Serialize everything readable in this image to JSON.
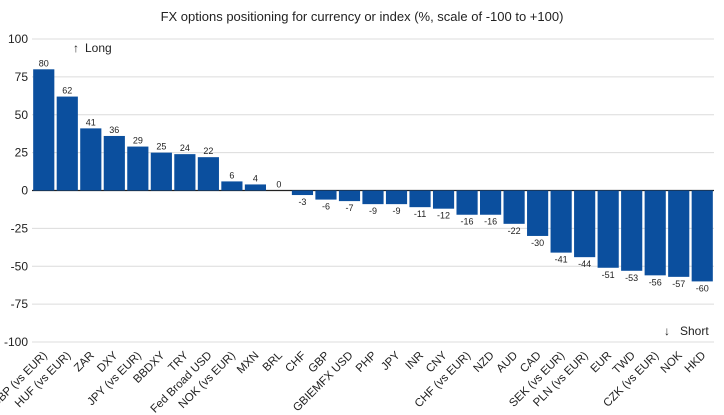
{
  "chart_data": {
    "type": "bar",
    "title": "FX options positioning for currency or index (%, scale of -100 to +100)",
    "xlabel": "",
    "ylabel": "",
    "ylim": [
      -100,
      100
    ],
    "yticks": [
      100,
      75,
      50,
      25,
      0,
      -25,
      -50,
      -75,
      -100
    ],
    "grid": true,
    "bar_color": "#0b4f9e",
    "categories": [
      "GBP (vs EUR)",
      "HUF (vs EUR)",
      "ZAR",
      "DXY",
      "JPY (vs EUR)",
      "BBDXY",
      "TRY",
      "Fed Broad USD",
      "NOK (vs EUR)",
      "MXN",
      "BRL",
      "CHF",
      "GBP",
      "GBIEMFX USD",
      "PHP",
      "JPY",
      "INR",
      "CNY",
      "CHF (vs EUR)",
      "NZD",
      "AUD",
      "CAD",
      "SEK (vs EUR)",
      "PLN (vs EUR)",
      "EUR",
      "TWD",
      "CZK (vs EUR)",
      "NOK",
      "HKD"
    ],
    "values": [
      80,
      62,
      41,
      36,
      29,
      25,
      24,
      22,
      6,
      4,
      0,
      -3,
      -6,
      -7,
      -9,
      -9,
      -11,
      -12,
      -16,
      -16,
      -22,
      -30,
      -41,
      -44,
      -51,
      -53,
      -56,
      -57,
      -60
    ],
    "annotations": {
      "long": {
        "arrow": "↑",
        "text": "Long"
      },
      "short": {
        "arrow": "↓",
        "text": "Short"
      }
    }
  }
}
